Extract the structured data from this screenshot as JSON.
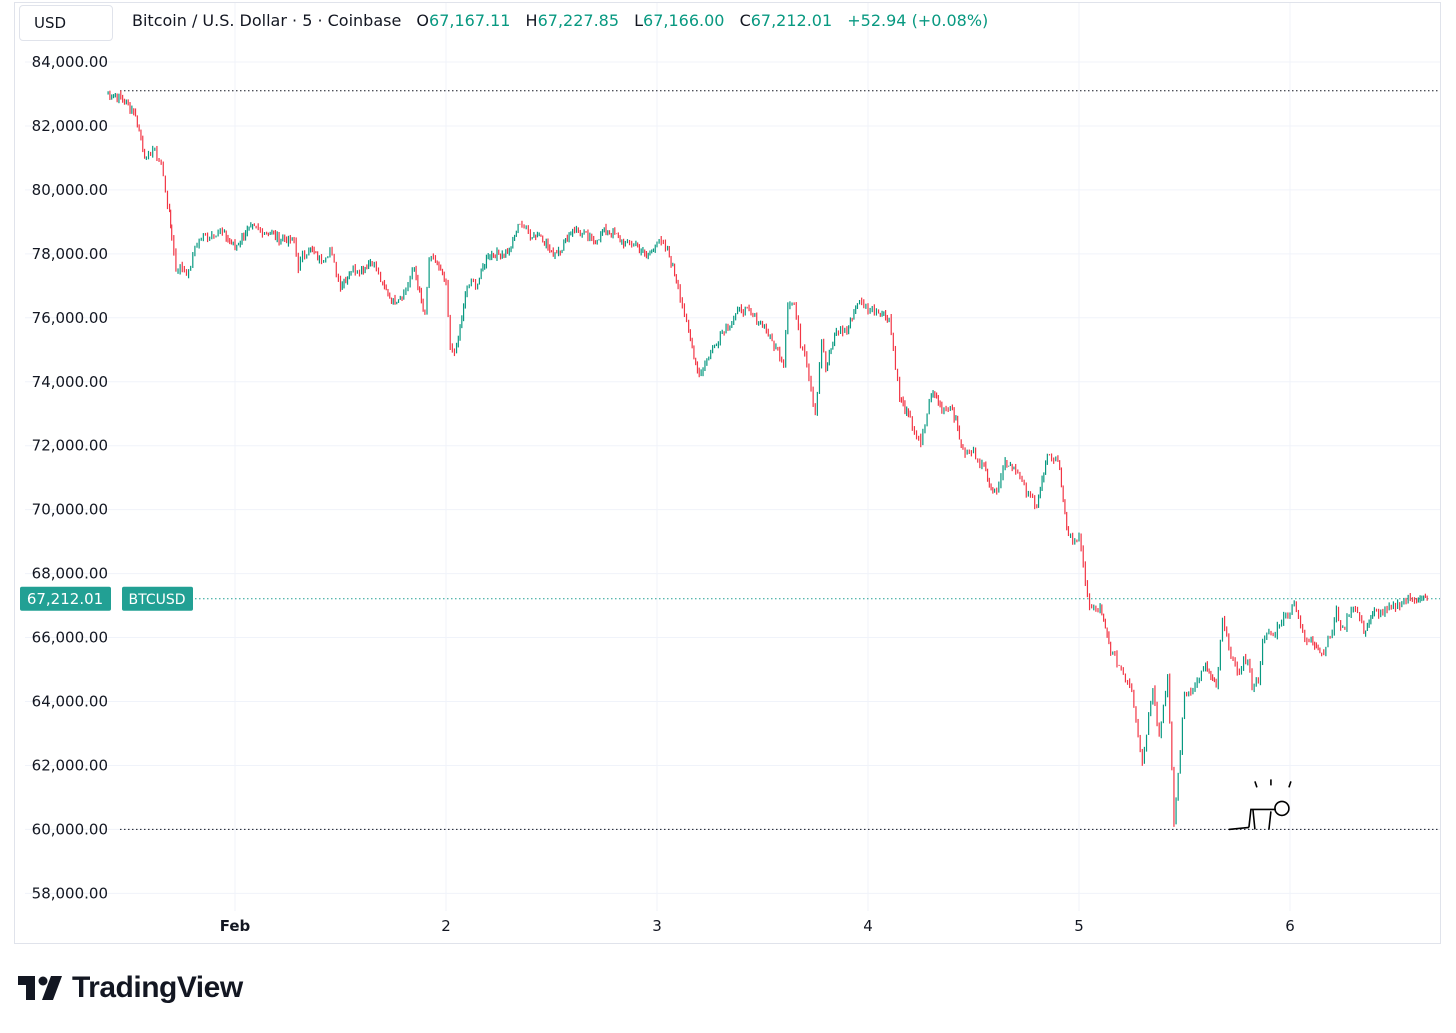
{
  "currency_selector": "USD",
  "legend": {
    "symbol": "Bitcoin / U.S. Dollar · 5 · Coinbase",
    "open_label": "O",
    "open": "67,167.11",
    "high_label": "H",
    "high": "67,227.85",
    "low_label": "L",
    "low": "67,166.00",
    "close_label": "C",
    "close": "67,212.01",
    "change": "+52.94 (+0.08%)"
  },
  "price_tag": {
    "value": "67,212.01",
    "ticker": "BTCUSD"
  },
  "brand": "TradingView",
  "colors": {
    "up": "#089981",
    "down": "#f23645",
    "grid": "#f0f3fa",
    "tag": "#22a094"
  },
  "chart_data": {
    "type": "line",
    "title": "Bitcoin / U.S. Dollar · 5 · Coinbase",
    "ylim": [
      57500,
      84800
    ],
    "y_ticks": [
      84000,
      82000,
      80000,
      78000,
      76000,
      74000,
      72000,
      70000,
      68000,
      66000,
      64000,
      62000,
      60000,
      58000
    ],
    "y_tick_labels": [
      "84,000.00",
      "82,000.00",
      "80,000.00",
      "78,000.00",
      "76,000.00",
      "74,000.00",
      "72,000.00",
      "70,000.00",
      "68,000.00",
      "66,000.00",
      "64,000.00",
      "62,000.00",
      "60,000.00",
      "58,000.00"
    ],
    "x_range_days": [
      -0.62,
      5.68
    ],
    "x_ticks": [
      0,
      1,
      2,
      3,
      4,
      5
    ],
    "x_tick_labels": [
      "Feb",
      "2",
      "3",
      "4",
      "5",
      "6"
    ],
    "reference_lines": [
      83100,
      67212.01,
      60000
    ],
    "series": [
      {
        "x": [
          -0.61,
          -0.55,
          -0.48,
          -0.42,
          -0.39,
          -0.35,
          -0.31,
          -0.3,
          -0.28,
          -0.26,
          -0.22,
          -0.19,
          -0.16,
          -0.12,
          -0.08,
          -0.05,
          0.0,
          0.05,
          0.1,
          0.15,
          0.2,
          0.28,
          0.3,
          0.32,
          0.35,
          0.4,
          0.45,
          0.5,
          0.55,
          0.6,
          0.65,
          0.7,
          0.75,
          0.8,
          0.85,
          0.9,
          0.92,
          0.95,
          1.0,
          1.02,
          1.05,
          1.1,
          1.15,
          1.2,
          1.25,
          1.3,
          1.35,
          1.4,
          1.45,
          1.5,
          1.55,
          1.6,
          1.7,
          1.75,
          1.8,
          1.85,
          1.9,
          1.95,
          2.0,
          2.05,
          2.1,
          2.15,
          2.2,
          2.3,
          2.4,
          2.5,
          2.6,
          2.62,
          2.65,
          2.68,
          2.7,
          2.75,
          2.78,
          2.8,
          2.85,
          2.9,
          2.95,
          3.0,
          3.05,
          3.1,
          3.15,
          3.2,
          3.25,
          3.3,
          3.35,
          3.4,
          3.45,
          3.5,
          3.55,
          3.6,
          3.65,
          3.7,
          3.75,
          3.8,
          3.85,
          3.9,
          3.95,
          4.0,
          4.05,
          4.1,
          4.15,
          4.2,
          4.25,
          4.3,
          4.35,
          4.38,
          4.42,
          4.45,
          4.48,
          4.5,
          4.55,
          4.6,
          4.65,
          4.68,
          4.72,
          4.75,
          4.78,
          4.8,
          4.82,
          4.85,
          4.87,
          4.9,
          4.92,
          4.95,
          5.0,
          5.02,
          5.05,
          5.08,
          5.1,
          5.15,
          5.2,
          5.22,
          5.25,
          5.28,
          5.3,
          5.33,
          5.35,
          5.4,
          5.45,
          5.5,
          5.55,
          5.6,
          5.65
        ],
        "y": [
          83000,
          82900,
          82500,
          80900,
          81300,
          80800,
          79200,
          78600,
          77500,
          77600,
          77400,
          78200,
          78500,
          78600,
          78700,
          78600,
          78200,
          78700,
          78800,
          78700,
          78500,
          78400,
          77600,
          77900,
          78200,
          77800,
          78100,
          77000,
          77500,
          77500,
          77800,
          77000,
          76500,
          76800,
          77500,
          76000,
          77800,
          77800,
          77000,
          75000,
          75000,
          77000,
          77100,
          78000,
          78000,
          78100,
          79000,
          78600,
          78600,
          78000,
          78200,
          78800,
          78400,
          78700,
          78600,
          78300,
          78300,
          77900,
          78400,
          78100,
          77000,
          75500,
          74200,
          75500,
          76300,
          75800,
          74600,
          76500,
          76400,
          75200,
          75000,
          73000,
          75300,
          74400,
          75600,
          75600,
          76500,
          76300,
          76200,
          76000,
          73500,
          72800,
          72000,
          73700,
          73200,
          73200,
          71800,
          71800,
          71300,
          70500,
          71500,
          71300,
          70500,
          70200,
          71600,
          71600,
          69100,
          69100,
          66900,
          66900,
          65600,
          65000,
          64400,
          62100,
          64500,
          62900,
          64800,
          60200,
          62500,
          64200,
          64500,
          65100,
          64400,
          66500,
          65500,
          64800,
          65300,
          65200,
          64500,
          64700,
          65800,
          66200,
          66000,
          66500,
          66800,
          67212,
          66300,
          65800,
          66000,
          65500,
          66200,
          66800,
          66200,
          66800,
          67000,
          66600,
          66200,
          66800,
          66800,
          67000,
          67200,
          67212,
          67212
        ]
      }
    ]
  }
}
